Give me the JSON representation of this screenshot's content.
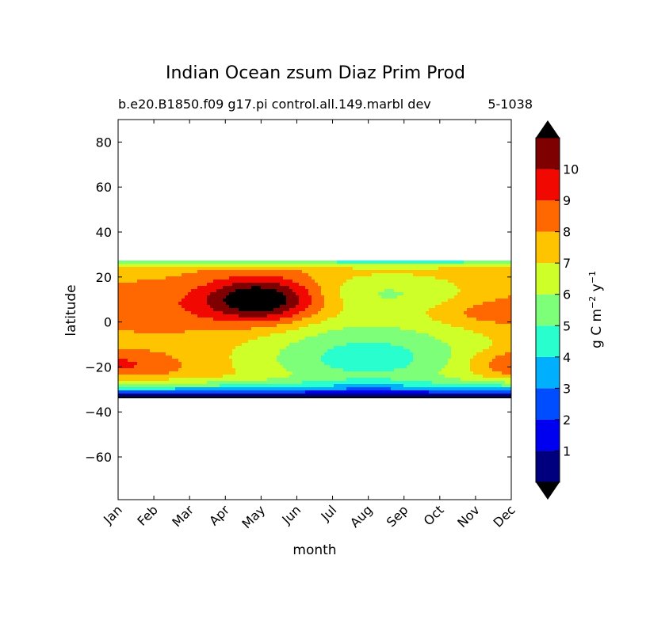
{
  "chart_data": {
    "type": "heatmap",
    "title": "Indian Ocean zsum Diaz Prim Prod",
    "subtitle_left": "b.e20.B1850.f09 g17.pi control.all.149.marbl dev",
    "subtitle_right": "5-1038",
    "xlabel": "month",
    "ylabel": "latitude",
    "x_categories": [
      "Jan",
      "Feb",
      "Mar",
      "Apr",
      "May",
      "Jun",
      "Jul",
      "Aug",
      "Sep",
      "Oct",
      "Nov",
      "Dec"
    ],
    "y_ticks": [
      "80",
      "60",
      "40",
      "20",
      "0",
      "−20",
      "−40",
      "−60"
    ],
    "y_tick_values": [
      80,
      60,
      40,
      20,
      0,
      -20,
      -40,
      -60
    ],
    "ylim": [
      -79,
      90
    ],
    "data_lat_range": [
      -34,
      27
    ],
    "colorbar": {
      "label_main": "g C m",
      "label_exp1": "−2",
      "label_mid": " y",
      "label_exp2": "−1",
      "tick_labels": [
        "1",
        "2",
        "3",
        "4",
        "5",
        "6",
        "7",
        "8",
        "9",
        "10"
      ],
      "tick_values": [
        1,
        2,
        3,
        4,
        5,
        6,
        7,
        8,
        9,
        10
      ],
      "levels": [
        0,
        1,
        2,
        3,
        4,
        5,
        6,
        7,
        8,
        9,
        10,
        11
      ],
      "colors": [
        "#00007f",
        "#0000f1",
        "#004cff",
        "#00b0ff",
        "#29ffce",
        "#7dff7a",
        "#ceff29",
        "#ffc400",
        "#ff6800",
        "#f10800",
        "#7f0000"
      ],
      "under_color": "#000000",
      "over_color": "#000000"
    }
  }
}
